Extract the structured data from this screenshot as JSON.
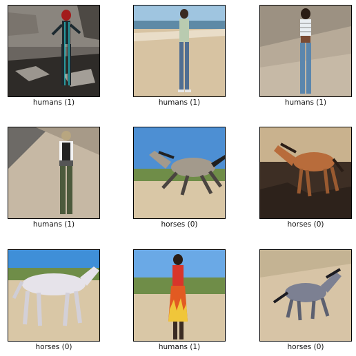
{
  "grid": {
    "items": [
      {
        "label": "humans (1)",
        "subject": "human"
      },
      {
        "label": "humans (1)",
        "subject": "human"
      },
      {
        "label": "humans (1)",
        "subject": "human"
      },
      {
        "label": "humans (1)",
        "subject": "human"
      },
      {
        "label": "horses (0)",
        "subject": "horse"
      },
      {
        "label": "horses (0)",
        "subject": "horse"
      },
      {
        "label": "horses (0)",
        "subject": "horse"
      },
      {
        "label": "humans (1)",
        "subject": "human"
      },
      {
        "label": "horses (0)",
        "subject": "horse"
      }
    ]
  }
}
